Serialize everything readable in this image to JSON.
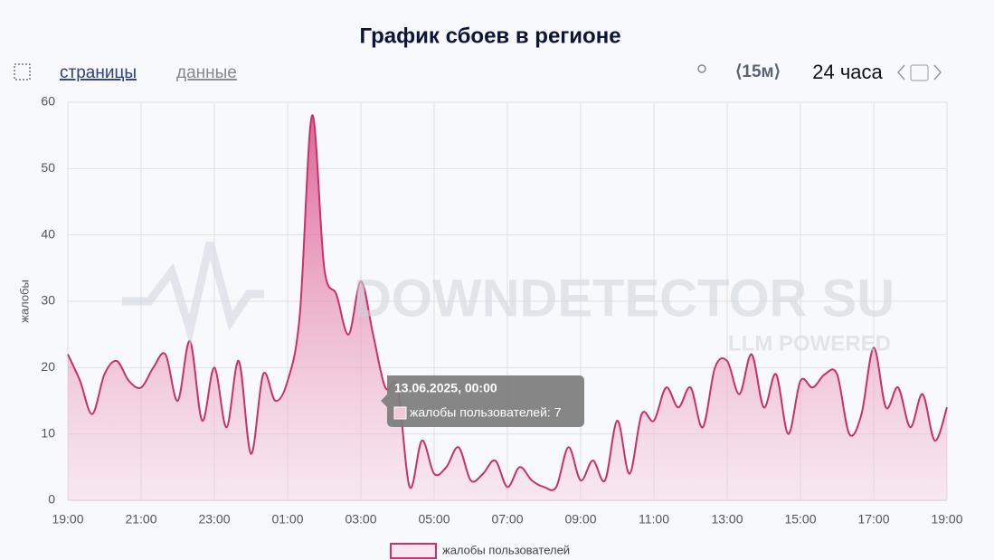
{
  "ui": {
    "tabs": [
      "страницы",
      "данные"
    ],
    "interval": "⟨15м⟩",
    "period": "24 часа"
  },
  "chart_data": {
    "type": "area",
    "title": "График сбоев в регионе",
    "y_label": "жалобы",
    "watermark": [
      "DOWNDETECTOR SU",
      "LLM POWERED"
    ],
    "tooltip": {
      "title": "13.06.2025, 00:00",
      "text": "жалобы пользователей: 7"
    },
    "categories": [
      "19:00",
      null,
      null,
      null,
      null,
      null,
      "21:00",
      null,
      null,
      null,
      null,
      null,
      "23:00",
      null,
      null,
      null,
      null,
      null,
      "01:00",
      null,
      null,
      null,
      null,
      null,
      "03:00",
      null,
      null,
      null,
      null,
      null,
      "05:00",
      null,
      null,
      null,
      null,
      null,
      "07:00",
      null,
      null,
      null,
      null,
      null,
      "09:00",
      null,
      null,
      null,
      null,
      null,
      "11:00",
      null,
      null,
      null,
      null,
      null,
      "13:00",
      null,
      null,
      null,
      null,
      null,
      "15:00",
      null,
      null,
      null,
      null,
      null,
      "17:00",
      null,
      null,
      null,
      null,
      null,
      "19:00"
    ],
    "series": [
      {
        "name": "жалобы пользователей",
        "color": "#c8316a",
        "values": [
          22,
          18,
          13,
          19,
          21,
          18,
          17,
          20,
          22,
          15,
          24,
          12,
          20,
          11,
          21,
          7,
          19,
          15,
          18,
          28,
          58,
          35,
          31,
          25,
          33,
          25,
          17,
          17,
          2,
          9,
          4,
          5,
          8,
          3,
          4,
          6,
          2,
          5,
          3,
          2,
          2,
          8,
          3,
          6,
          3,
          12,
          4,
          13,
          12,
          17,
          14,
          17,
          11,
          20,
          21,
          16,
          22,
          14,
          19,
          10,
          18,
          17,
          19,
          19,
          10,
          13,
          23,
          14,
          17,
          11,
          16,
          9,
          14
        ]
      }
    ],
    "ylim": [
      0,
      60
    ],
    "yticks": [
      0,
      10,
      20,
      30,
      40,
      50,
      60
    ],
    "grid": true
  }
}
